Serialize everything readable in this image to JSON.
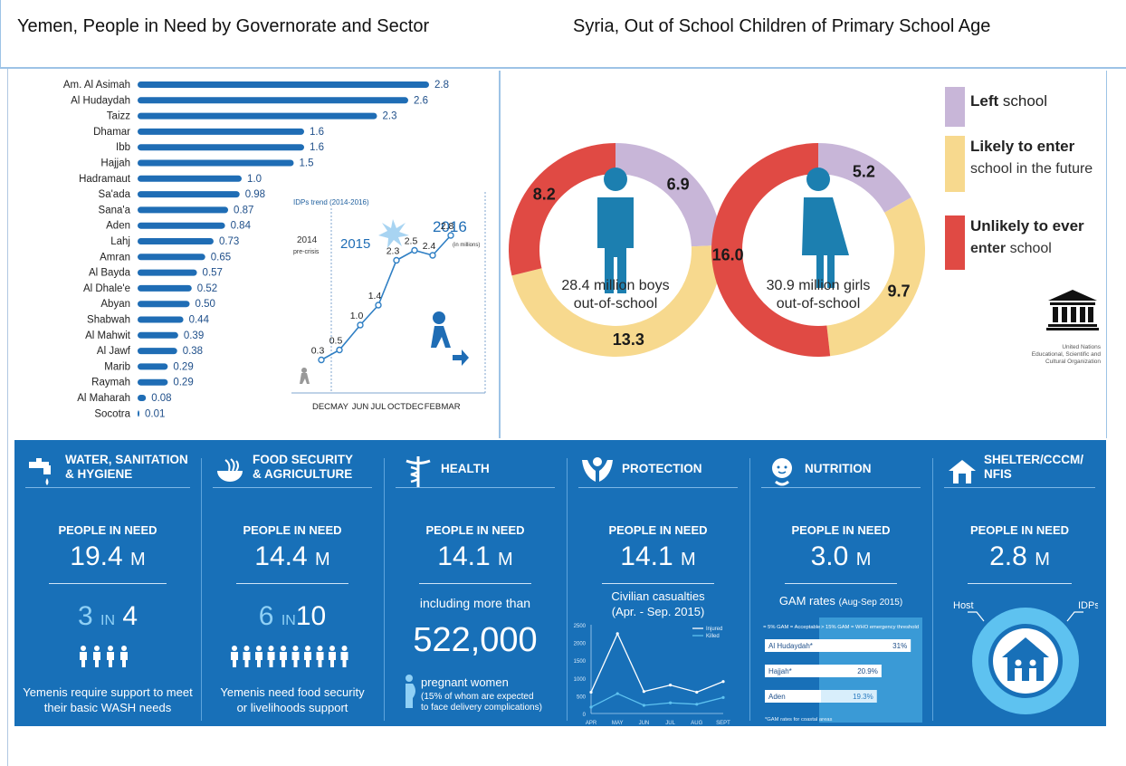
{
  "titles": {
    "left": "Yemen, People in Need by Governorate and Sector",
    "right": "Syria, Out of School Children of Primary School Age"
  },
  "chart_data": [
    {
      "type": "bar",
      "orientation": "horizontal",
      "title": "",
      "categories": [
        "Am. Al Asimah",
        "Al Hudaydah",
        "Taizz",
        "Dhamar",
        "Ibb",
        "Hajjah",
        "Hadramaut",
        "Sa'ada",
        "Sana'a",
        "Aden",
        "Lahj",
        "Amran",
        "Al Bayda",
        "Al Dhale'e",
        "Abyan",
        "Shabwah",
        "Al Mahwit",
        "Al Jawf",
        "Marib",
        "Raymah",
        "Al Maharah",
        "Socotra"
      ],
      "values": [
        2.8,
        2.6,
        2.3,
        1.6,
        1.6,
        1.5,
        1.0,
        0.98,
        0.87,
        0.84,
        0.73,
        0.65,
        0.57,
        0.52,
        0.5,
        0.44,
        0.39,
        0.38,
        0.29,
        0.29,
        0.08,
        0.01
      ],
      "labels": [
        "2.8",
        "2.6",
        "2.3",
        "1.6",
        "1.6",
        "1.5",
        "1.0",
        "0.98",
        "0.87",
        "0.84",
        "0.73",
        "0.65",
        "0.57",
        "0.52",
        "0.50",
        "0.44",
        "0.39",
        "0.38",
        "0.29",
        "0.29",
        "0.08",
        "0.01"
      ],
      "color": "#1f6db5"
    },
    {
      "type": "line",
      "title": "IDPs trend (2014-2016)",
      "x": [
        "DEC",
        "MAY",
        "JUN",
        "JUL",
        "OCT",
        "DEC",
        "FEB",
        "MAR"
      ],
      "values": [
        0.3,
        0.5,
        1.0,
        1.4,
        2.3,
        2.5,
        2.4,
        2.8
      ],
      "labels": [
        "0.3",
        "0.5",
        "1.0",
        "1.4",
        "2.3",
        "2.5",
        "2.4",
        "2.8"
      ],
      "unit": "(in millions)",
      "year_labels": [
        "2014",
        "pre-crisis",
        "2015",
        "2016"
      ],
      "color": "#2f7fc4"
    },
    {
      "type": "pie",
      "title": "28.4 million boys out-of-school",
      "segments": [
        {
          "name": "Left school",
          "value": 6.9
        },
        {
          "name": "Likely to enter school in the future",
          "value": 13.3
        },
        {
          "name": "Unlikely to ever enter school",
          "value": 8.2
        }
      ],
      "center_line1": "28.4 million boys",
      "center_line2": "out-of-school"
    },
    {
      "type": "pie",
      "title": "30.9 million girls out-of-school",
      "segments": [
        {
          "name": "Left school",
          "value": 5.2
        },
        {
          "name": "Likely to enter school in the future",
          "value": 9.7
        },
        {
          "name": "Unlikely to ever enter school",
          "value": 16.0
        }
      ],
      "center_line1": "30.9 million girls",
      "center_line2": "out-of-school"
    },
    {
      "type": "line",
      "title": "Civilian casualties (Apr. - Sep. 2015)",
      "x": [
        "APR",
        "MAY",
        "JUN",
        "JUL",
        "AUG",
        "SEPT"
      ],
      "series": [
        {
          "name": "Injured",
          "values": [
            600,
            2250,
            620,
            800,
            600,
            900
          ]
        },
        {
          "name": "Killed",
          "values": [
            180,
            560,
            230,
            300,
            260,
            450
          ]
        }
      ],
      "ylim": [
        0,
        2500
      ],
      "yticks": [
        "0",
        "500",
        "1000",
        "1500",
        "2000",
        "2500"
      ]
    },
    {
      "type": "bar",
      "orientation": "horizontal",
      "title": "GAM rates (Aug-Sep 2015)",
      "categories": [
        "Al Hudaydah*",
        "Hajjah*",
        "Aden"
      ],
      "values": [
        31,
        20.9,
        19.3
      ],
      "labels": [
        "31%",
        "20.9%",
        "19.3%"
      ],
      "thresholds": [
        "<= 5% GAM = Acceptable",
        "> 15% GAM = WHO emergency threshold"
      ],
      "footnote": "*GAM rates for coastal areas"
    },
    {
      "type": "pie",
      "title": "Shelter",
      "segments": [
        {
          "name": "Host",
          "value": null
        },
        {
          "name": "IDPs",
          "value": null
        }
      ]
    }
  ],
  "legend": [
    {
      "bold": "Left",
      "rest": " school",
      "color": "#c8b6d8"
    },
    {
      "bold": "Likely to enter",
      "rest": "school in the future",
      "color": "#f7d98e"
    },
    {
      "bold": "Unlikely to ever",
      "rest_bold": "enter",
      "rest": " school",
      "color": "#e04a44"
    }
  ],
  "unesco": {
    "line1": "United Nations",
    "line2": "Educational, Scientific and",
    "line3": "Cultural Organization"
  },
  "sectors": [
    {
      "title1": "WATER, SANITATION",
      "title2": "& HYGIENE",
      "icon": "tap-icon",
      "pin": "PEOPLE IN NEED",
      "num": "19.4",
      "unit": "M",
      "ratio_a": "3",
      "ratio_in": "IN",
      "ratio_b": "4",
      "desc1": "Yemenis require support to meet",
      "desc2": "their basic WASH needs"
    },
    {
      "title1": "FOOD SECURITY",
      "title2": "& AGRICULTURE",
      "icon": "food-bowl-icon",
      "pin": "PEOPLE IN NEED",
      "num": "14.4",
      "unit": "M",
      "ratio_a": "6",
      "ratio_in": "IN",
      "ratio_b": "10",
      "desc1": "Yemenis need food security",
      "desc2": "or livelihoods support"
    },
    {
      "title1": "HEALTH",
      "title2": "",
      "icon": "caduceus-icon",
      "pin": "PEOPLE IN NEED",
      "num": "14.1",
      "unit": "M",
      "incl": "including more than",
      "big2": "522,000",
      "preg": "pregnant women",
      "preg_note1": "(15% of whom are expected",
      "preg_note2": "to face delivery complications)"
    },
    {
      "title1": "PROTECTION",
      "title2": "",
      "icon": "protection-hands-icon",
      "pin": "PEOPLE IN NEED",
      "num": "14.1",
      "unit": "M",
      "cas1": "Civilian casualties",
      "cas2": "(Apr. - Sep. 2015)"
    },
    {
      "title1": "NUTRITION",
      "title2": "",
      "icon": "baby-icon",
      "pin": "PEOPLE IN NEED",
      "num": "3.0",
      "unit": "M",
      "gam": "GAM rates",
      "gam_period": "(Aug-Sep 2015)"
    },
    {
      "title1": "SHELTER/CCCM/",
      "title2": "NFIs",
      "icon": "house-icon",
      "pin": "PEOPLE IN NEED",
      "num": "2.8",
      "unit": "M"
    }
  ],
  "colors": {
    "band": "#1870b8",
    "bar": "#1f6db5",
    "purple": "#c8b6d8",
    "yellow": "#f7d98e",
    "red": "#e04a44",
    "figure": "#1c7fb0"
  }
}
